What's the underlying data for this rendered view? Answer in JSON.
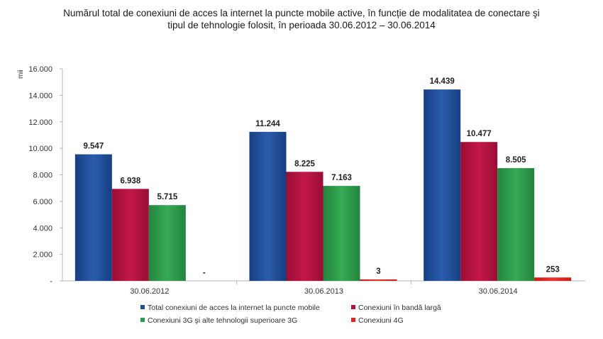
{
  "chart_data": {
    "type": "bar",
    "title_line1": "Numărul total de conexiuni de acces la internet la puncte mobile active, în funcție de modalitatea de conectare şi",
    "title_line2": "tipul de tehnologie folosit, în perioada 30.06.2012 – 30.06.2014",
    "unit": "mii",
    "categories": [
      "30.06.2012",
      "30.06.2013",
      "30.06.2014"
    ],
    "ylim": [
      0,
      16000
    ],
    "yticks": [
      0,
      2000,
      4000,
      6000,
      8000,
      10000,
      12000,
      14000,
      16000
    ],
    "ytick_labels": [
      "-",
      "2.000",
      "4.000",
      "6.000",
      "8.000",
      "10.000",
      "12.000",
      "14.000",
      "16.000"
    ],
    "legend_position": "bottom",
    "grid": false,
    "series": [
      {
        "name": "Total conexiuni de acces la internet la puncte mobile",
        "color": "#1f4e99",
        "values": [
          9547,
          11244,
          14439
        ],
        "labels": [
          "9.547",
          "11.244",
          "14.439"
        ]
      },
      {
        "name": "Conexiuni în bandă largă",
        "color": "#b3123f",
        "values": [
          6938,
          8225,
          10477
        ],
        "labels": [
          "6.938",
          "8.225",
          "10.477"
        ]
      },
      {
        "name": "Conexiuni 3G şi alte tehnologii superioare 3G",
        "color": "#2e9a4a",
        "values": [
          5715,
          7163,
          8505
        ],
        "labels": [
          "5.715",
          "7.163",
          "8.505"
        ]
      },
      {
        "name": "Conexiuni 4G",
        "color": "#e3241f",
        "values": [
          0,
          3,
          253
        ],
        "labels": [
          "-",
          "3",
          "253"
        ]
      }
    ]
  }
}
